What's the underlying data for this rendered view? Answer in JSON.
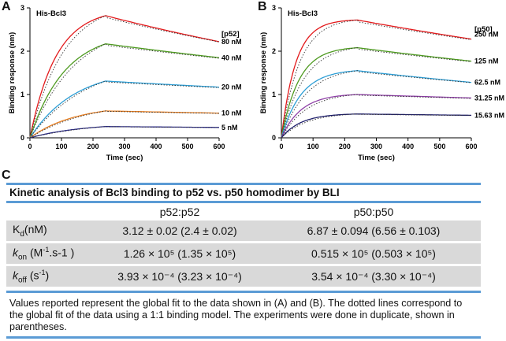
{
  "panels": {
    "a": "A",
    "b": "B",
    "c": "C"
  },
  "chart_data": [
    {
      "type": "line",
      "id": "A",
      "title": "His-Bcl3",
      "xlabel": "Time (sec)",
      "ylabel": "Binding response (nm)",
      "xlim": [
        0,
        600
      ],
      "ylim": [
        0,
        3
      ],
      "xticks": [
        0,
        100,
        200,
        300,
        400,
        500,
        600
      ],
      "yticks": [
        0,
        1,
        2,
        3
      ],
      "legend_title": "[p52]",
      "association_end": 240,
      "series": [
        {
          "name": "80 nM",
          "color": "#e31a1c",
          "peak": 2.82,
          "end": 2.22,
          "k": 0.012
        },
        {
          "name": "40 nM",
          "color": "#4d9a1f",
          "peak": 2.17,
          "end": 1.85,
          "k": 0.009
        },
        {
          "name": "20 nM",
          "color": "#2e9fd6",
          "peak": 1.31,
          "end": 1.17,
          "k": 0.007
        },
        {
          "name": "10 nM",
          "color": "#e67e22",
          "peak": 0.62,
          "end": 0.57,
          "k": 0.007
        },
        {
          "name": "5 nM",
          "color": "#2c2c8a",
          "peak": 0.26,
          "end": 0.24,
          "k": 0.006
        }
      ]
    },
    {
      "type": "line",
      "id": "B",
      "title": "His-Bcl3",
      "xlabel": "Time (sec)",
      "ylabel": "Binding response (nm)",
      "xlim": [
        0,
        600
      ],
      "ylim": [
        0,
        3
      ],
      "xticks": [
        0,
        100,
        200,
        300,
        400,
        500,
        600
      ],
      "yticks": [
        0,
        1,
        2,
        3
      ],
      "legend_title": "[p50]",
      "association_end": 240,
      "series": [
        {
          "name": "250 nM",
          "color": "#e31a1c",
          "peak": 2.72,
          "end": 2.28,
          "k": 0.022
        },
        {
          "name": "125 nM",
          "color": "#4d9a1f",
          "peak": 2.08,
          "end": 1.77,
          "k": 0.018
        },
        {
          "name": "62.5 nM",
          "color": "#2e9fd6",
          "peak": 1.55,
          "end": 1.28,
          "k": 0.016
        },
        {
          "name": "31.25 nM",
          "color": "#8e3fa6",
          "peak": 1.0,
          "end": 0.92,
          "k": 0.016
        },
        {
          "name": "15.63 nM",
          "color": "#1f1f6b",
          "peak": 0.55,
          "end": 0.52,
          "k": 0.016
        }
      ]
    }
  ],
  "table": {
    "title": "Kinetic analysis of Bcl3 binding to p52 vs. p50 homodimer by BLI",
    "col1": "p52:p52",
    "col2": "p50:p50",
    "rows": [
      {
        "sym": "K",
        "sub": "d",
        "unit": "(nM)",
        "sup": "",
        "unit_tail": "",
        "v1": "3.12 ± 0.02 (2.4 ± 0.02)",
        "v2": "6.87 ± 0.094 (6.56 ± 0.103)"
      },
      {
        "sym": "k",
        "sub": "on",
        "unit": " (M",
        "sup": "-1",
        "unit_tail": ".s-1 )",
        "v1": "1.26 × 10⁵ (1.35 × 10⁵)",
        "v2": "0.515 × 10⁵ (0.503 × 10⁵)"
      },
      {
        "sym": "k",
        "sub": "off",
        "unit": " (s",
        "sup": "-1",
        "unit_tail": ")",
        "v1": "3.93 × 10⁻⁴ (3.23 × 10⁻⁴)",
        "v2": "3.54 × 10⁻⁴ (3.30 × 10⁻⁴)"
      }
    ],
    "footnote": "Values reported represent the global fit to the data shown in (A) and (B). The dotted lines correspond to the global fit of the data using a 1:1 binding model. The experiments were done in duplicate, shown in parentheses."
  }
}
